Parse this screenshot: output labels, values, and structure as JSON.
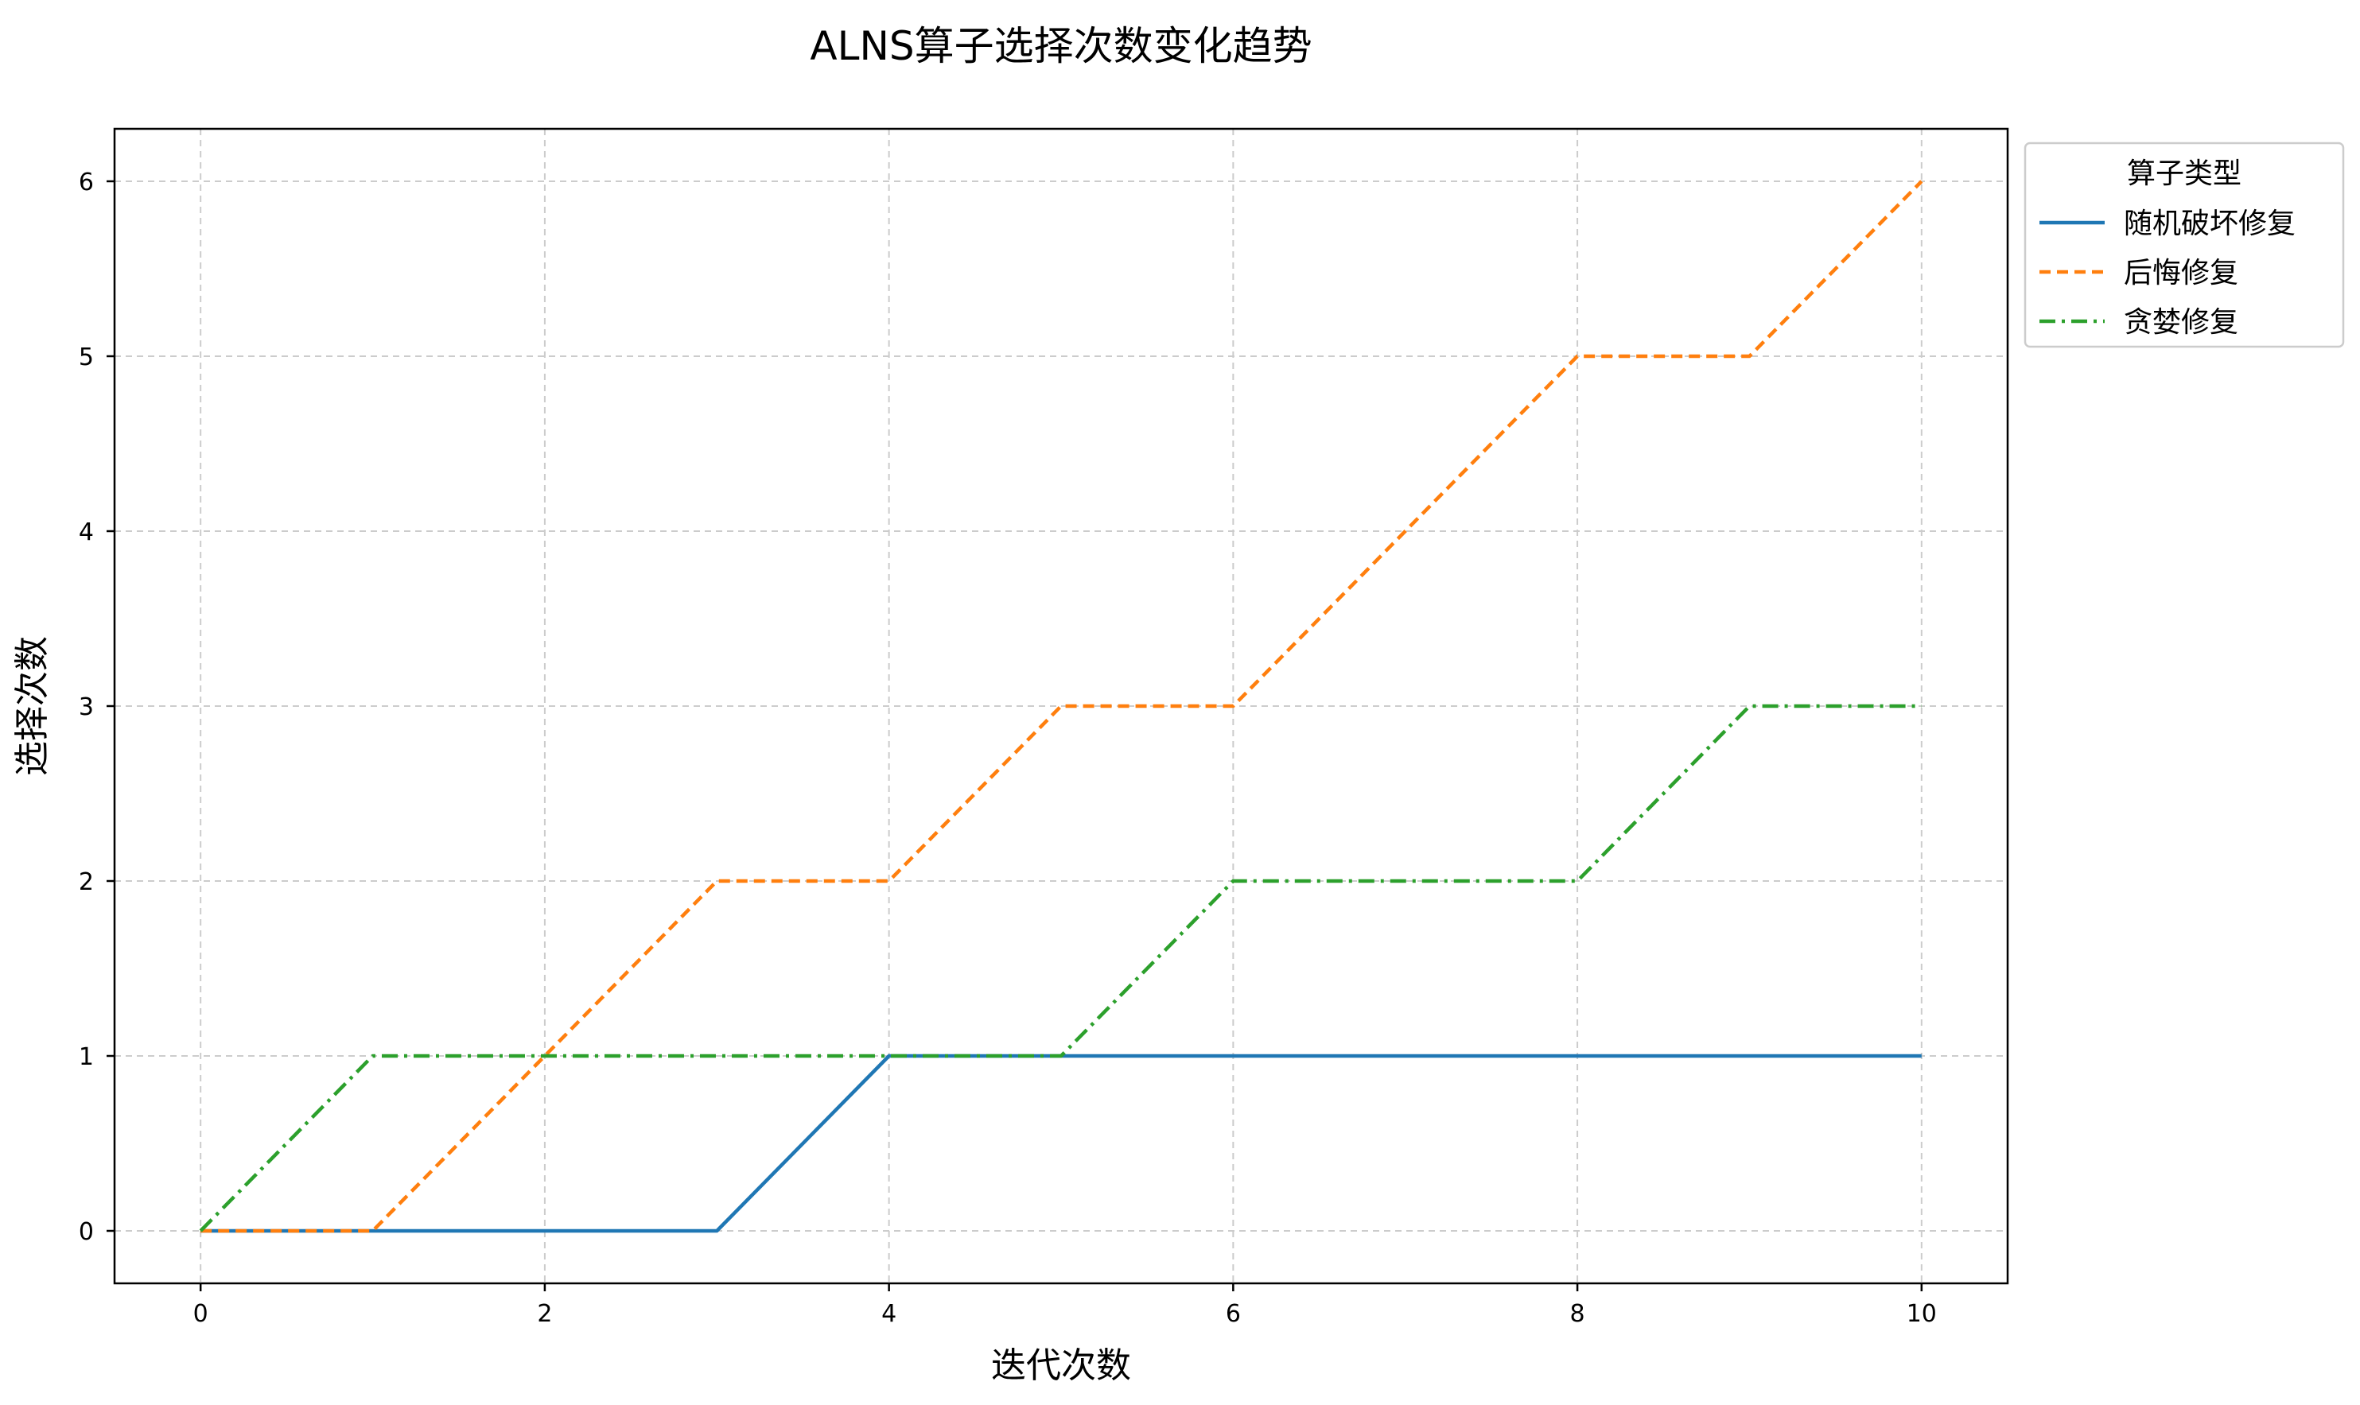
{
  "chart_data": {
    "type": "line",
    "title": "ALNS算子选择次数变化趋势",
    "xlabel": "迭代次数",
    "ylabel": "选择次数",
    "xlim": [
      -0.5,
      10.5
    ],
    "ylim": [
      -0.3,
      6.3
    ],
    "xticks": [
      0,
      2,
      4,
      6,
      8,
      10
    ],
    "yticks": [
      0,
      1,
      2,
      3,
      4,
      5,
      6
    ],
    "grid": true,
    "legend": {
      "title": "算子类型",
      "placement": "outside-top-right"
    },
    "x": [
      0,
      1,
      2,
      3,
      4,
      5,
      6,
      7,
      8,
      9,
      10
    ],
    "series": [
      {
        "name": "随机破坏修复",
        "color": "#1f77b4",
        "dash": "solid",
        "values": [
          0,
          0,
          0,
          0,
          1,
          1,
          1,
          1,
          1,
          1,
          1
        ]
      },
      {
        "name": "后悔修复",
        "color": "#ff7f0e",
        "dash": "dashed",
        "values": [
          0,
          0,
          1,
          2,
          2,
          3,
          3,
          4,
          5,
          5,
          6
        ]
      },
      {
        "name": "贪婪修复",
        "color": "#2ca02c",
        "dash": "dashdot",
        "values": [
          0,
          1,
          1,
          1,
          1,
          1,
          2,
          2,
          2,
          3,
          3
        ]
      }
    ]
  }
}
